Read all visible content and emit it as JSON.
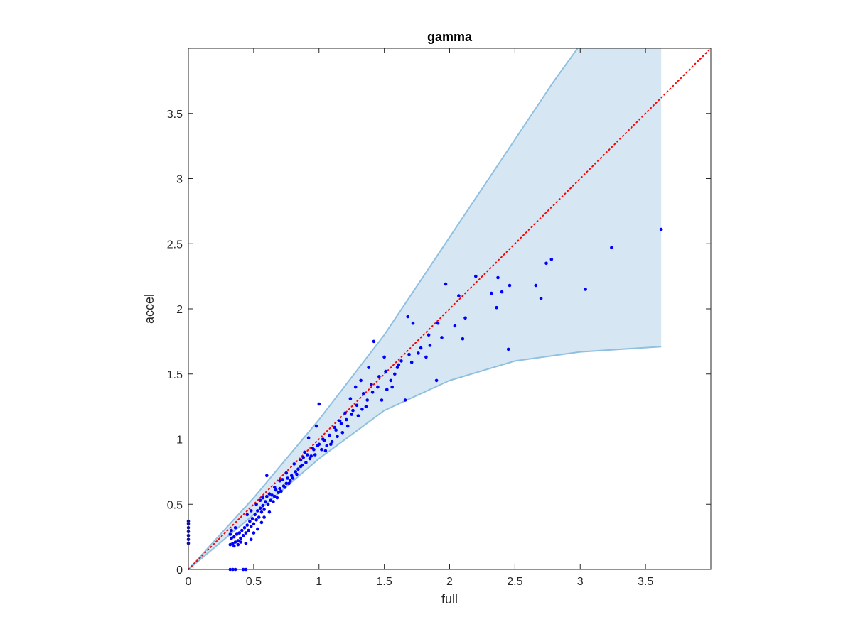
{
  "chart_data": {
    "type": "scatter",
    "title": "gamma",
    "xlabel": "full",
    "ylabel": "accel",
    "xlim": [
      0,
      4
    ],
    "ylim": [
      0,
      4
    ],
    "xticks": [
      0,
      0.5,
      1,
      1.5,
      2,
      2.5,
      3,
      3.5
    ],
    "yticks": [
      0,
      0.5,
      1,
      1.5,
      2,
      2.5,
      3,
      3.5
    ],
    "xtick_labels": [
      "0",
      "0.5",
      "1",
      "1.5",
      "2",
      "2.5",
      "3",
      "3.5"
    ],
    "ytick_labels": [
      "0",
      "0.5",
      "1",
      "1.5",
      "2",
      "2.5",
      "3",
      "3.5"
    ],
    "grid": false,
    "colors": {
      "points": "#0000ff",
      "band_fill": "#d6e7f3",
      "band_edge": "#8fc0e0",
      "reference_line": "#ff0000",
      "axes": "#262626"
    },
    "reference_line": {
      "style": "dotted",
      "points": [
        [
          0,
          0
        ],
        [
          4,
          4
        ]
      ]
    },
    "band": {
      "upper": [
        [
          0,
          0
        ],
        [
          0.5,
          0.55
        ],
        [
          1,
          1.15
        ],
        [
          1.5,
          1.8
        ],
        [
          2,
          2.55
        ],
        [
          2.5,
          3.3
        ],
        [
          2.8,
          3.75
        ],
        [
          2.98,
          4.0
        ],
        [
          3.62,
          4.0
        ]
      ],
      "lower": [
        [
          0,
          0
        ],
        [
          0.5,
          0.42
        ],
        [
          1,
          0.85
        ],
        [
          1.5,
          1.22
        ],
        [
          2,
          1.45
        ],
        [
          2.5,
          1.6
        ],
        [
          3,
          1.67
        ],
        [
          3.62,
          1.71
        ]
      ]
    },
    "series": [
      {
        "points": [
          [
            0,
            0.2
          ],
          [
            0,
            0.23
          ],
          [
            0,
            0.26
          ],
          [
            0,
            0.29
          ],
          [
            0,
            0.32
          ],
          [
            0,
            0.35
          ],
          [
            0,
            0.37
          ],
          [
            0.32,
            0
          ],
          [
            0.34,
            0
          ],
          [
            0.36,
            0
          ],
          [
            0.42,
            0
          ],
          [
            0.44,
            0
          ],
          [
            3.62,
            2.61
          ],
          [
            3.24,
            2.47
          ],
          [
            3.04,
            2.15
          ],
          [
            2.78,
            2.38
          ],
          [
            2.74,
            2.35
          ],
          [
            2.7,
            2.08
          ],
          [
            2.66,
            2.18
          ],
          [
            2.46,
            2.18
          ],
          [
            2.45,
            1.69
          ],
          [
            2.4,
            2.13
          ],
          [
            2.37,
            2.24
          ],
          [
            2.36,
            2.01
          ],
          [
            2.32,
            2.12
          ],
          [
            2.2,
            2.25
          ],
          [
            2.12,
            1.93
          ],
          [
            2.1,
            1.77
          ],
          [
            2.07,
            2.1
          ],
          [
            2.04,
            1.87
          ],
          [
            1.97,
            2.19
          ],
          [
            1.91,
            1.89
          ],
          [
            1.9,
            1.45
          ],
          [
            1.85,
            1.72
          ],
          [
            1.82,
            1.63
          ],
          [
            1.78,
            1.7
          ],
          [
            1.72,
            1.89
          ],
          [
            1.71,
            1.59
          ],
          [
            1.68,
            1.94
          ],
          [
            1.66,
            1.3
          ],
          [
            1.63,
            1.6
          ],
          [
            1.6,
            1.55
          ],
          [
            1.58,
            1.5
          ],
          [
            1.55,
            1.45
          ],
          [
            1.52,
            1.38
          ],
          [
            1.5,
            1.63
          ],
          [
            1.48,
            1.3
          ],
          [
            1.45,
            1.4
          ],
          [
            1.42,
            1.75
          ],
          [
            1.4,
            1.42
          ],
          [
            1.38,
            1.55
          ],
          [
            1.36,
            1.25
          ],
          [
            1.34,
            1.35
          ],
          [
            1.32,
            1.45
          ],
          [
            1.3,
            1.18
          ],
          [
            1.28,
            1.4
          ],
          [
            1.26,
            1.22
          ],
          [
            1.24,
            1.31
          ],
          [
            1.22,
            1.1
          ],
          [
            1.2,
            1.2
          ],
          [
            1.18,
            1.05
          ],
          [
            1.16,
            1.14
          ],
          [
            1.14,
            1.02
          ],
          [
            1.12,
            1.09
          ],
          [
            1.1,
            0.98
          ],
          [
            1.08,
            1.03
          ],
          [
            1.06,
            0.95
          ],
          [
            1.04,
            0.99
          ],
          [
            1.02,
            0.92
          ],
          [
            1.0,
            1.27
          ],
          [
            1.0,
            0.96
          ],
          [
            0.98,
            1.1
          ],
          [
            0.97,
            0.88
          ],
          [
            0.95,
            0.93
          ],
          [
            0.93,
            0.85
          ],
          [
            0.92,
            1.01
          ],
          [
            0.9,
            0.82
          ],
          [
            0.89,
            0.9
          ],
          [
            0.87,
            0.8
          ],
          [
            0.86,
            0.84
          ],
          [
            0.84,
            0.77
          ],
          [
            0.82,
            0.75
          ],
          [
            0.81,
            0.81
          ],
          [
            0.79,
            0.72
          ],
          [
            0.78,
            0.68
          ],
          [
            0.76,
            0.7
          ],
          [
            0.75,
            0.66
          ],
          [
            0.73,
            0.64
          ],
          [
            0.72,
            0.69
          ],
          [
            0.7,
            0.62
          ],
          [
            0.69,
            0.59
          ],
          [
            0.67,
            0.61
          ],
          [
            0.66,
            0.56
          ],
          [
            0.64,
            0.57
          ],
          [
            0.63,
            0.53
          ],
          [
            0.62,
            0.58
          ],
          [
            0.61,
            0.5
          ],
          [
            0.6,
            0.72
          ],
          [
            0.59,
            0.52
          ],
          [
            0.58,
            0.46
          ],
          [
            0.57,
            0.49
          ],
          [
            0.56,
            0.44
          ],
          [
            0.55,
            0.47
          ],
          [
            0.54,
            0.4
          ],
          [
            0.53,
            0.45
          ],
          [
            0.52,
            0.38
          ],
          [
            0.51,
            0.42
          ],
          [
            0.5,
            0.35
          ],
          [
            0.49,
            0.39
          ],
          [
            0.48,
            0.33
          ],
          [
            0.47,
            0.37
          ],
          [
            0.46,
            0.3
          ],
          [
            0.45,
            0.34
          ],
          [
            0.44,
            0.28
          ],
          [
            0.43,
            0.32
          ],
          [
            0.42,
            0.26
          ],
          [
            0.41,
            0.3
          ],
          [
            0.4,
            0.24
          ],
          [
            0.39,
            0.28
          ],
          [
            0.38,
            0.22
          ],
          [
            0.37,
            0.27
          ],
          [
            0.36,
            0.21
          ],
          [
            0.35,
            0.25
          ],
          [
            0.34,
            0.2
          ],
          [
            0.33,
            0.24
          ],
          [
            0.32,
            0.27
          ],
          [
            0.32,
            0.19
          ],
          [
            0.33,
            0.3
          ],
          [
            0.35,
            0.18
          ],
          [
            0.36,
            0.32
          ],
          [
            0.38,
            0.19
          ],
          [
            0.4,
            0.21
          ],
          [
            0.44,
            0.2
          ],
          [
            0.48,
            0.23
          ],
          [
            0.5,
            0.28
          ],
          [
            0.53,
            0.31
          ],
          [
            0.56,
            0.36
          ],
          [
            0.58,
            0.4
          ],
          [
            0.62,
            0.44
          ],
          [
            0.65,
            0.52
          ],
          [
            0.68,
            0.55
          ],
          [
            0.71,
            0.6
          ],
          [
            0.74,
            0.63
          ],
          [
            0.77,
            0.66
          ],
          [
            0.8,
            0.7
          ],
          [
            0.83,
            0.73
          ],
          [
            0.86,
            0.79
          ],
          [
            0.88,
            0.86
          ],
          [
            0.91,
            0.88
          ],
          [
            0.94,
            0.87
          ],
          [
            0.96,
            0.92
          ],
          [
            0.99,
            0.95
          ],
          [
            1.03,
            1.0
          ],
          [
            1.05,
            0.91
          ],
          [
            1.09,
            0.96
          ],
          [
            1.13,
            1.07
          ],
          [
            1.17,
            1.12
          ],
          [
            1.21,
            1.15
          ],
          [
            1.25,
            1.19
          ],
          [
            1.29,
            1.26
          ],
          [
            1.33,
            1.23
          ],
          [
            1.37,
            1.3
          ],
          [
            1.41,
            1.36
          ],
          [
            1.46,
            1.48
          ],
          [
            1.51,
            1.52
          ],
          [
            1.56,
            1.4
          ],
          [
            1.61,
            1.57
          ],
          [
            1.69,
            1.65
          ],
          [
            1.76,
            1.66
          ],
          [
            1.84,
            1.8
          ],
          [
            1.94,
            1.78
          ],
          [
            0.45,
            0.42
          ],
          [
            0.52,
            0.5
          ],
          [
            0.57,
            0.55
          ],
          [
            0.66,
            0.63
          ],
          [
            0.7,
            0.68
          ],
          [
            0.75,
            0.74
          ],
          [
            0.6,
            0.56
          ],
          [
            0.55,
            0.53
          ],
          [
            0.48,
            0.45
          ]
        ]
      }
    ]
  }
}
